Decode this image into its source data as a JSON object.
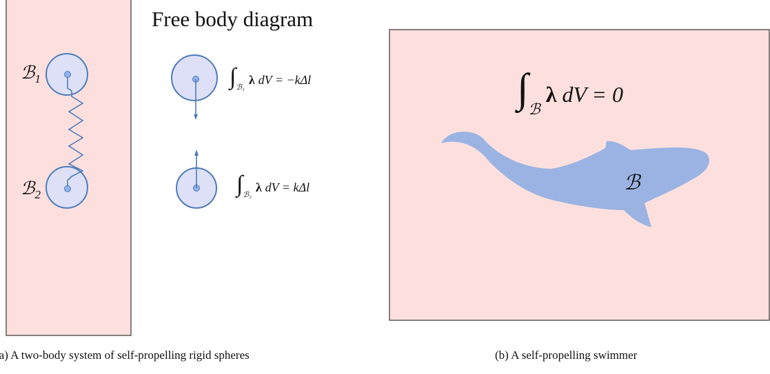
{
  "left_panel": {
    "bodies": [
      {
        "label": "ℬ",
        "sub": "1"
      },
      {
        "label": "ℬ",
        "sub": "2"
      }
    ]
  },
  "free_body": {
    "title": "Free body diagram",
    "equations": [
      {
        "integral": "∫",
        "sub": "ℬ₁",
        "bold": "λ",
        "rest": "dV = −kΔl"
      },
      {
        "integral": "∫",
        "sub": "ℬ₂",
        "bold": "λ",
        "rest": "dV = kΔl"
      }
    ]
  },
  "right_panel": {
    "equation": {
      "integral": "∫",
      "sub": "ℬ",
      "bold": "λ",
      "rest": "dV = 0"
    },
    "body_label": "ℬ"
  },
  "captions": {
    "a": "(a) A two-body system of self-propelling rigid spheres",
    "b": "(b) A self-propelling swimmer"
  }
}
